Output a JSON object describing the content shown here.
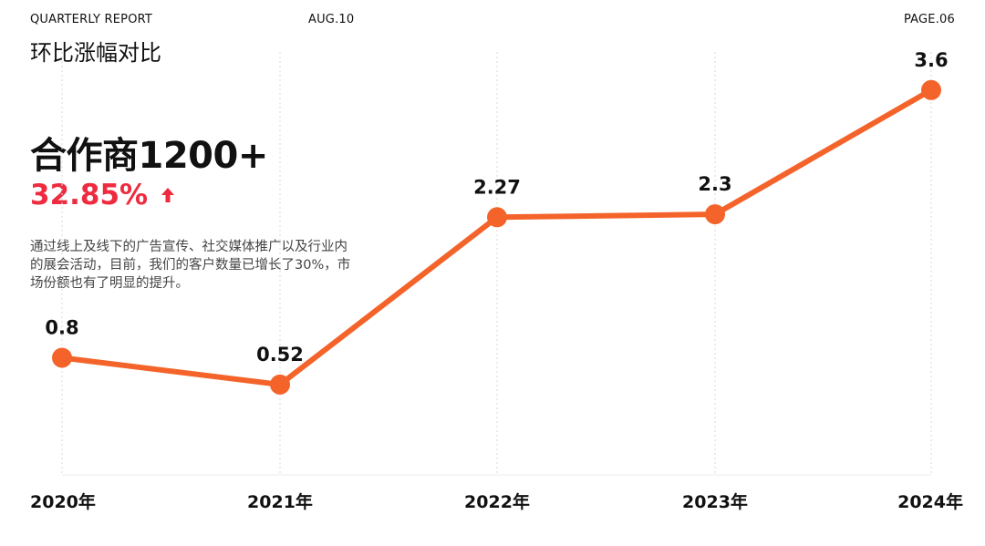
{
  "header": {
    "left": "QUARTERLY REPORT",
    "center": "AUG.10",
    "right": "PAGE.06"
  },
  "title": "环比涨幅对比",
  "headline": "合作商1200+",
  "growth": {
    "value": "32.85%",
    "icon": "arrow-up-icon"
  },
  "description": "通过线上及线下的广告宣传、社交媒体推广以及行业内的展会活动，目前，我们的客户数量已增长了30%，市场份额也有了明显的提升。",
  "colors": {
    "line": "#f4632a",
    "accent": "#ee2b3f",
    "grid": "#d8d8d8"
  },
  "chart_data": {
    "type": "line",
    "categories": [
      "2020年",
      "2021年",
      "2022年",
      "2023年",
      "2024年"
    ],
    "series": [
      {
        "values": [
          0.8,
          0.52,
          2.27,
          2.3,
          3.6
        ]
      }
    ],
    "data_labels": [
      "0.8",
      "0.52",
      "2.27",
      "2.3",
      "3.6"
    ],
    "ylim": [
      0,
      4
    ],
    "grid": "vertical dashed",
    "legend": "none"
  }
}
